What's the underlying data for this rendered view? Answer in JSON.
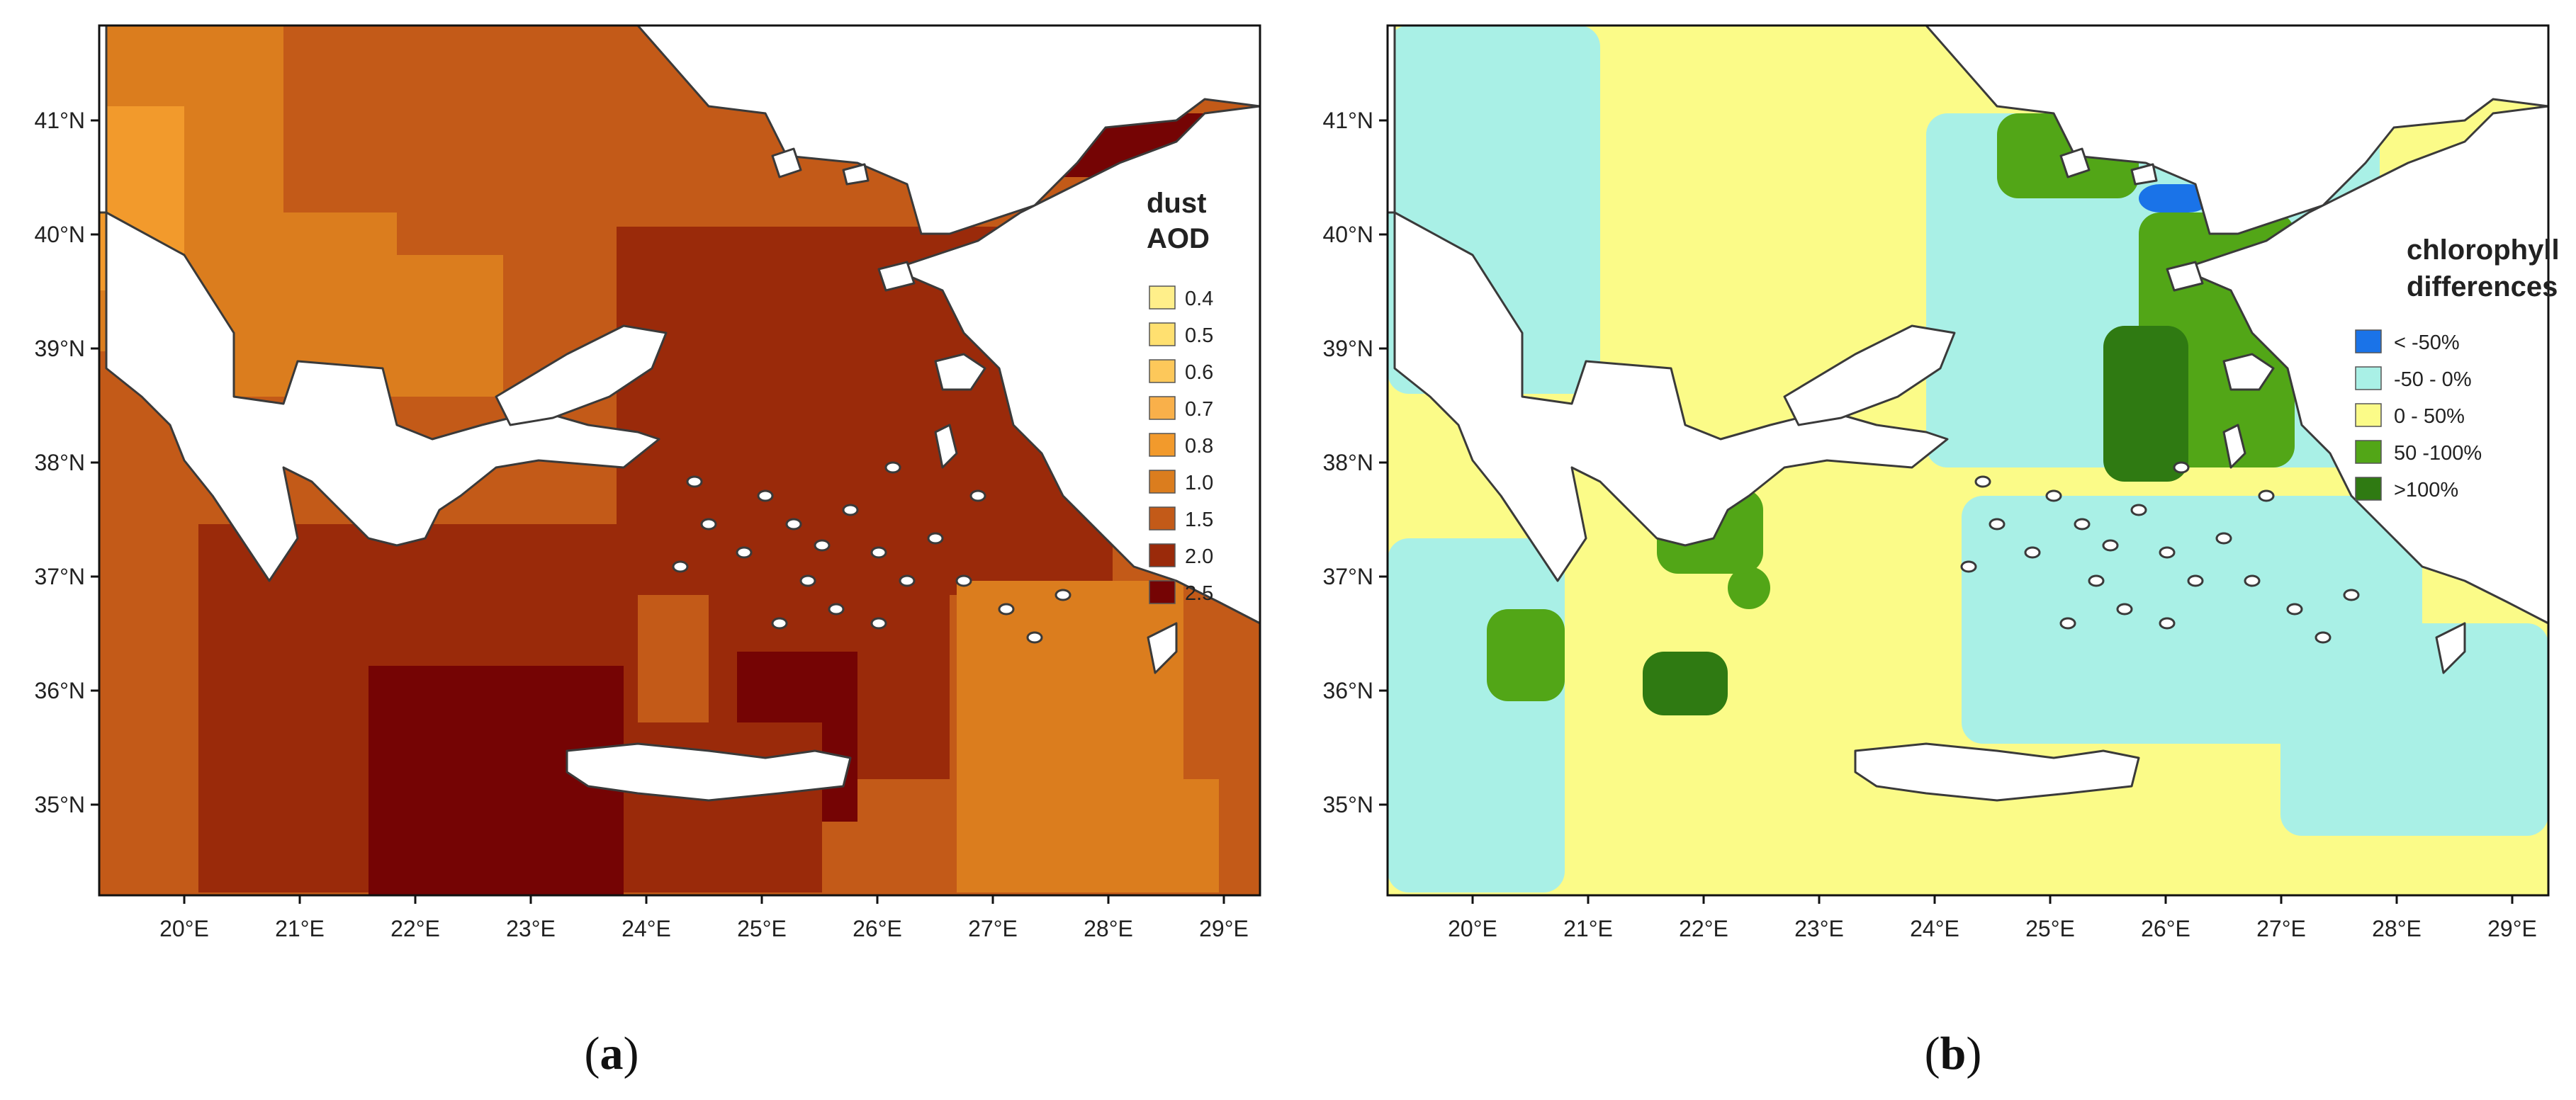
{
  "figure": {
    "panels": [
      {
        "id": "a",
        "caption_open": "(",
        "caption_letter": "a",
        "caption_close": ")",
        "legend_title_lines": [
          "dust",
          "AOD"
        ],
        "legend": [
          {
            "label": "0.4",
            "color": "#ffef8a"
          },
          {
            "label": "0.5",
            "color": "#ffe070"
          },
          {
            "label": "0.6",
            "color": "#fdc85a"
          },
          {
            "label": "0.7",
            "color": "#f9b04a"
          },
          {
            "label": "0.8",
            "color": "#f29a2c"
          },
          {
            "label": "1.0",
            "color": "#db7d1e"
          },
          {
            "label": "1.5",
            "color": "#c35a18"
          },
          {
            "label": "2.0",
            "color": "#9a2a0a"
          },
          {
            "label": "2.5",
            "color": "#750404"
          }
        ]
      },
      {
        "id": "b",
        "caption_open": "(",
        "caption_letter": "b",
        "caption_close": ")",
        "legend_title_lines": [
          "chlorophyll",
          "differences"
        ],
        "legend": [
          {
            "label": "< -50%",
            "color": "#1a73e8"
          },
          {
            "label": "-50 - 0%",
            "color": "#a9f0e6"
          },
          {
            "label": "0 - 50%",
            "color": "#fbfb88"
          },
          {
            "label": "50 -100%",
            "color": "#52a617"
          },
          {
            "label": ">100%",
            "color": "#2f7a12"
          }
        ]
      }
    ],
    "x_ticks": [
      "20°E",
      "21°E",
      "22°E",
      "23°E",
      "24°E",
      "25°E",
      "26°E",
      "27°E",
      "28°E",
      "29°E"
    ],
    "y_ticks": [
      "41°N",
      "40°N",
      "39°N",
      "38°N",
      "37°N",
      "36°N",
      "35°N"
    ],
    "land_color": "#ffffff",
    "coast_color": "#3a3a3a"
  }
}
